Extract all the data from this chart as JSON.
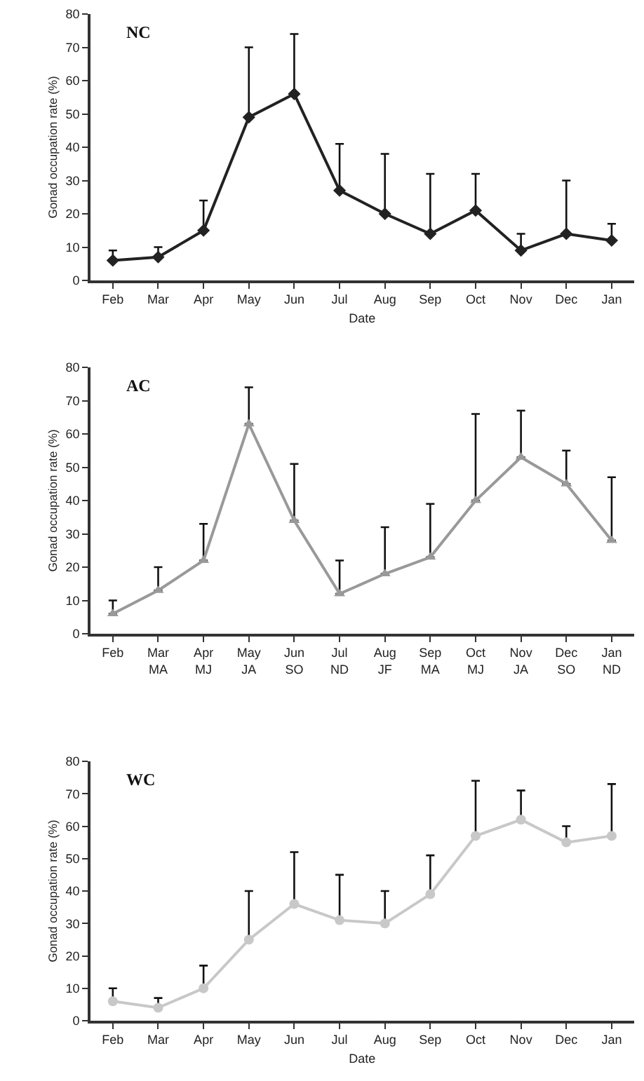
{
  "chart_data": [
    {
      "type": "line",
      "title": "NC",
      "xlabel": "Date",
      "ylabel": "Gonad occupation rate (%)",
      "categories": [
        "Feb",
        "Mar",
        "Apr",
        "May",
        "Jun",
        "Jul",
        "Aug",
        "Sep",
        "Oct",
        "Nov",
        "Dec",
        "Jan"
      ],
      "ylim": [
        0,
        80
      ],
      "yticks": [
        0,
        10,
        20,
        30,
        40,
        50,
        60,
        70,
        80
      ],
      "marker": "diamond",
      "series": [
        {
          "color": "#222222",
          "values": [
            6,
            7,
            15,
            49,
            56,
            27,
            20,
            14,
            21,
            9,
            14,
            12
          ],
          "errors": [
            [
              6,
              9
            ],
            [
              7,
              10
            ],
            [
              15,
              24
            ],
            [
              49,
              70
            ],
            [
              56,
              74
            ],
            [
              27,
              41
            ],
            [
              20,
              38
            ],
            [
              14,
              32
            ],
            [
              21,
              32
            ],
            [
              9,
              14
            ],
            [
              14,
              30
            ],
            [
              12,
              17
            ]
          ]
        }
      ]
    },
    {
      "type": "line",
      "title": "AC",
      "ylabel": "Gonad occupation rate (%)",
      "categories": [
        "Feb",
        "Mar\nMA",
        "Apr\nMJ",
        "May\nJA",
        "Jun\nSO",
        "Jul\nND",
        "Aug\nJF",
        "Sep\nMA",
        "Oct\nMJ",
        "Nov\nJA",
        "Dec\nSO",
        "Jan\nND"
      ],
      "ylim": [
        0,
        80
      ],
      "yticks": [
        0,
        10,
        20,
        30,
        40,
        50,
        60,
        70,
        80
      ],
      "marker": "triangle",
      "series": [
        {
          "color": "#999999",
          "values": [
            6,
            13,
            22,
            63,
            34,
            12,
            18,
            23,
            40,
            53,
            45,
            28
          ],
          "errors": [
            [
              6,
              10
            ],
            [
              13,
              20
            ],
            [
              22,
              33
            ],
            [
              63,
              74
            ],
            [
              34,
              51
            ],
            [
              12,
              22
            ],
            [
              18,
              32
            ],
            [
              23,
              39
            ],
            [
              40,
              66
            ],
            [
              53,
              67
            ],
            [
              45,
              55
            ],
            [
              28,
              47
            ]
          ]
        }
      ]
    },
    {
      "type": "line",
      "title": "WC",
      "xlabel": "Date",
      "ylabel": "Gonad occupation rate (%)",
      "categories": [
        "Feb",
        "Mar",
        "Apr",
        "May",
        "Jun",
        "Jul",
        "Aug",
        "Sep",
        "Oct",
        "Nov",
        "Dec",
        "Jan"
      ],
      "ylim": [
        0,
        80
      ],
      "yticks": [
        0,
        10,
        20,
        30,
        40,
        50,
        60,
        70,
        80
      ],
      "marker": "circle",
      "series": [
        {
          "color": "#c8c8c8",
          "values": [
            6,
            4,
            10,
            25,
            36,
            31,
            30,
            39,
            57,
            62,
            55,
            57
          ],
          "errors": [
            [
              6,
              10
            ],
            [
              4,
              7
            ],
            [
              10,
              17
            ],
            [
              25,
              40
            ],
            [
              36,
              52
            ],
            [
              31,
              45
            ],
            [
              30,
              40
            ],
            [
              39,
              51
            ],
            [
              57,
              74
            ],
            [
              62,
              71
            ],
            [
              55,
              60
            ],
            [
              57,
              73
            ]
          ]
        }
      ]
    }
  ]
}
